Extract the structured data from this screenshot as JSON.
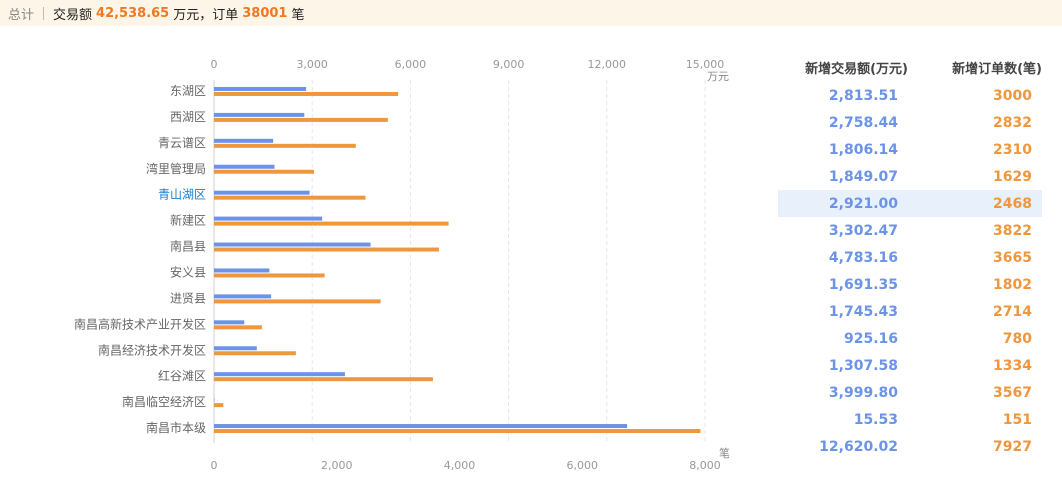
{
  "summary": {
    "total_label": "总计",
    "amount_label": "交易额",
    "amount_value": "42,538.65",
    "amount_unit": "万元，订单",
    "orders_value": "38001",
    "orders_unit": "笔"
  },
  "colors": {
    "amount": "#6b93e8",
    "orders": "#f0963c",
    "highlight": "#1a7fd0"
  },
  "chart_data": {
    "type": "bar",
    "orientation": "horizontal",
    "categories": [
      "东湖区",
      "西湖区",
      "青云谱区",
      "湾里管理局",
      "青山湖区",
      "新建区",
      "南昌县",
      "安义县",
      "进贤县",
      "南昌高新技术产业开发区",
      "南昌经济技术开发区",
      "红谷滩区",
      "南昌临空经济区",
      "南昌市本级"
    ],
    "highlighted_category": "青山湖区",
    "series": [
      {
        "name": "新增交易额(万元)",
        "axis": "top",
        "color": "#6b93e8",
        "values": [
          2813.51,
          2758.44,
          1806.14,
          1849.07,
          2921.0,
          3302.47,
          4783.16,
          1691.35,
          1745.43,
          925.16,
          1307.58,
          3999.8,
          15.53,
          12620.02
        ]
      },
      {
        "name": "新增订单数(笔)",
        "axis": "bottom",
        "color": "#f0963c",
        "values": [
          3000,
          2832,
          2310,
          1629,
          2468,
          3822,
          3665,
          1802,
          2714,
          780,
          1334,
          3567,
          151,
          7927
        ]
      }
    ],
    "top_axis": {
      "unit": "万元",
      "range": [
        0,
        15000
      ],
      "ticks": [
        0,
        3000,
        6000,
        9000,
        12000,
        15000
      ],
      "tick_labels": [
        "0",
        "3,000",
        "6,000",
        "9,000",
        "12,000",
        "15,000"
      ]
    },
    "bottom_axis": {
      "unit": "笔",
      "range": [
        0,
        8000
      ],
      "ticks": [
        0,
        2000,
        4000,
        6000,
        8000
      ],
      "tick_labels": [
        "0",
        "2,000",
        "4,000",
        "6,000",
        "8,000"
      ]
    },
    "grid": true,
    "grid_style": "dashed"
  },
  "table": {
    "headers": [
      "新增交易额(万元)",
      "新增订单数(笔)"
    ],
    "rows": [
      {
        "amount": "2,813.51",
        "orders": "3000"
      },
      {
        "amount": "2,758.44",
        "orders": "2832"
      },
      {
        "amount": "1,806.14",
        "orders": "2310"
      },
      {
        "amount": "1,849.07",
        "orders": "1629"
      },
      {
        "amount": "2,921.00",
        "orders": "2468"
      },
      {
        "amount": "3,302.47",
        "orders": "3822"
      },
      {
        "amount": "4,783.16",
        "orders": "3665"
      },
      {
        "amount": "1,691.35",
        "orders": "1802"
      },
      {
        "amount": "1,745.43",
        "orders": "2714"
      },
      {
        "amount": "925.16",
        "orders": "780"
      },
      {
        "amount": "1,307.58",
        "orders": "1334"
      },
      {
        "amount": "3,999.80",
        "orders": "3567"
      },
      {
        "amount": "15.53",
        "orders": "151"
      },
      {
        "amount": "12,620.02",
        "orders": "7927"
      }
    ],
    "highlight_row": 4
  }
}
